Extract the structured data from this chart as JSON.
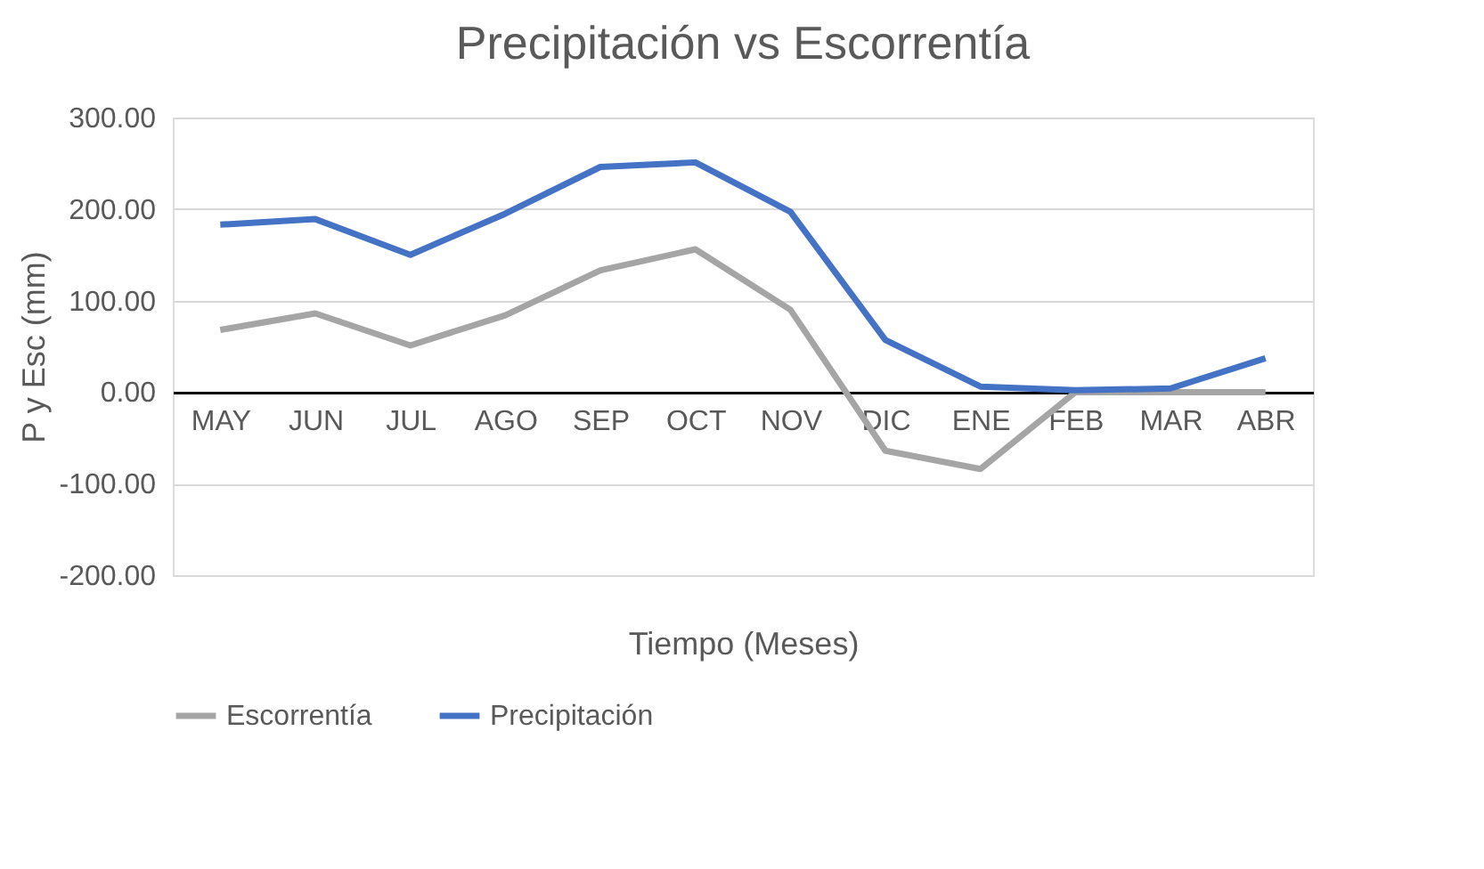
{
  "chart_data": {
    "type": "line",
    "title": "Precipitación vs Escorrentía",
    "xlabel": "Tiempo (Meses)",
    "ylabel": "P y Esc (mm)",
    "categories": [
      "MAY",
      "JUN",
      "JUL",
      "AGO",
      "SEP",
      "OCT",
      "NOV",
      "DIC",
      "ENE",
      "FEB",
      "MAR",
      "ABR"
    ],
    "series": [
      {
        "name": "Escorrentía",
        "color": "#a5a5a5",
        "values": [
          68,
          86,
          51,
          84,
          133,
          156,
          90,
          -64,
          -84,
          0,
          0,
          0
        ]
      },
      {
        "name": "Precipitación",
        "color": "#4472c4",
        "values": [
          183,
          189,
          150,
          195,
          246,
          251,
          197,
          57,
          6,
          2,
          4,
          37
        ]
      }
    ],
    "ylim": [
      -200,
      300
    ],
    "yticks": [
      {
        "value": -200,
        "label": "-200.00"
      },
      {
        "value": -100,
        "label": "-100.00"
      },
      {
        "value": 0,
        "label": "0.00"
      },
      {
        "value": 100,
        "label": "100.00"
      },
      {
        "value": 200,
        "label": "200.00"
      },
      {
        "value": 300,
        "label": "300.00"
      }
    ],
    "grid": "y",
    "legend": "bottom",
    "marker": "none",
    "line_style": "solid"
  }
}
